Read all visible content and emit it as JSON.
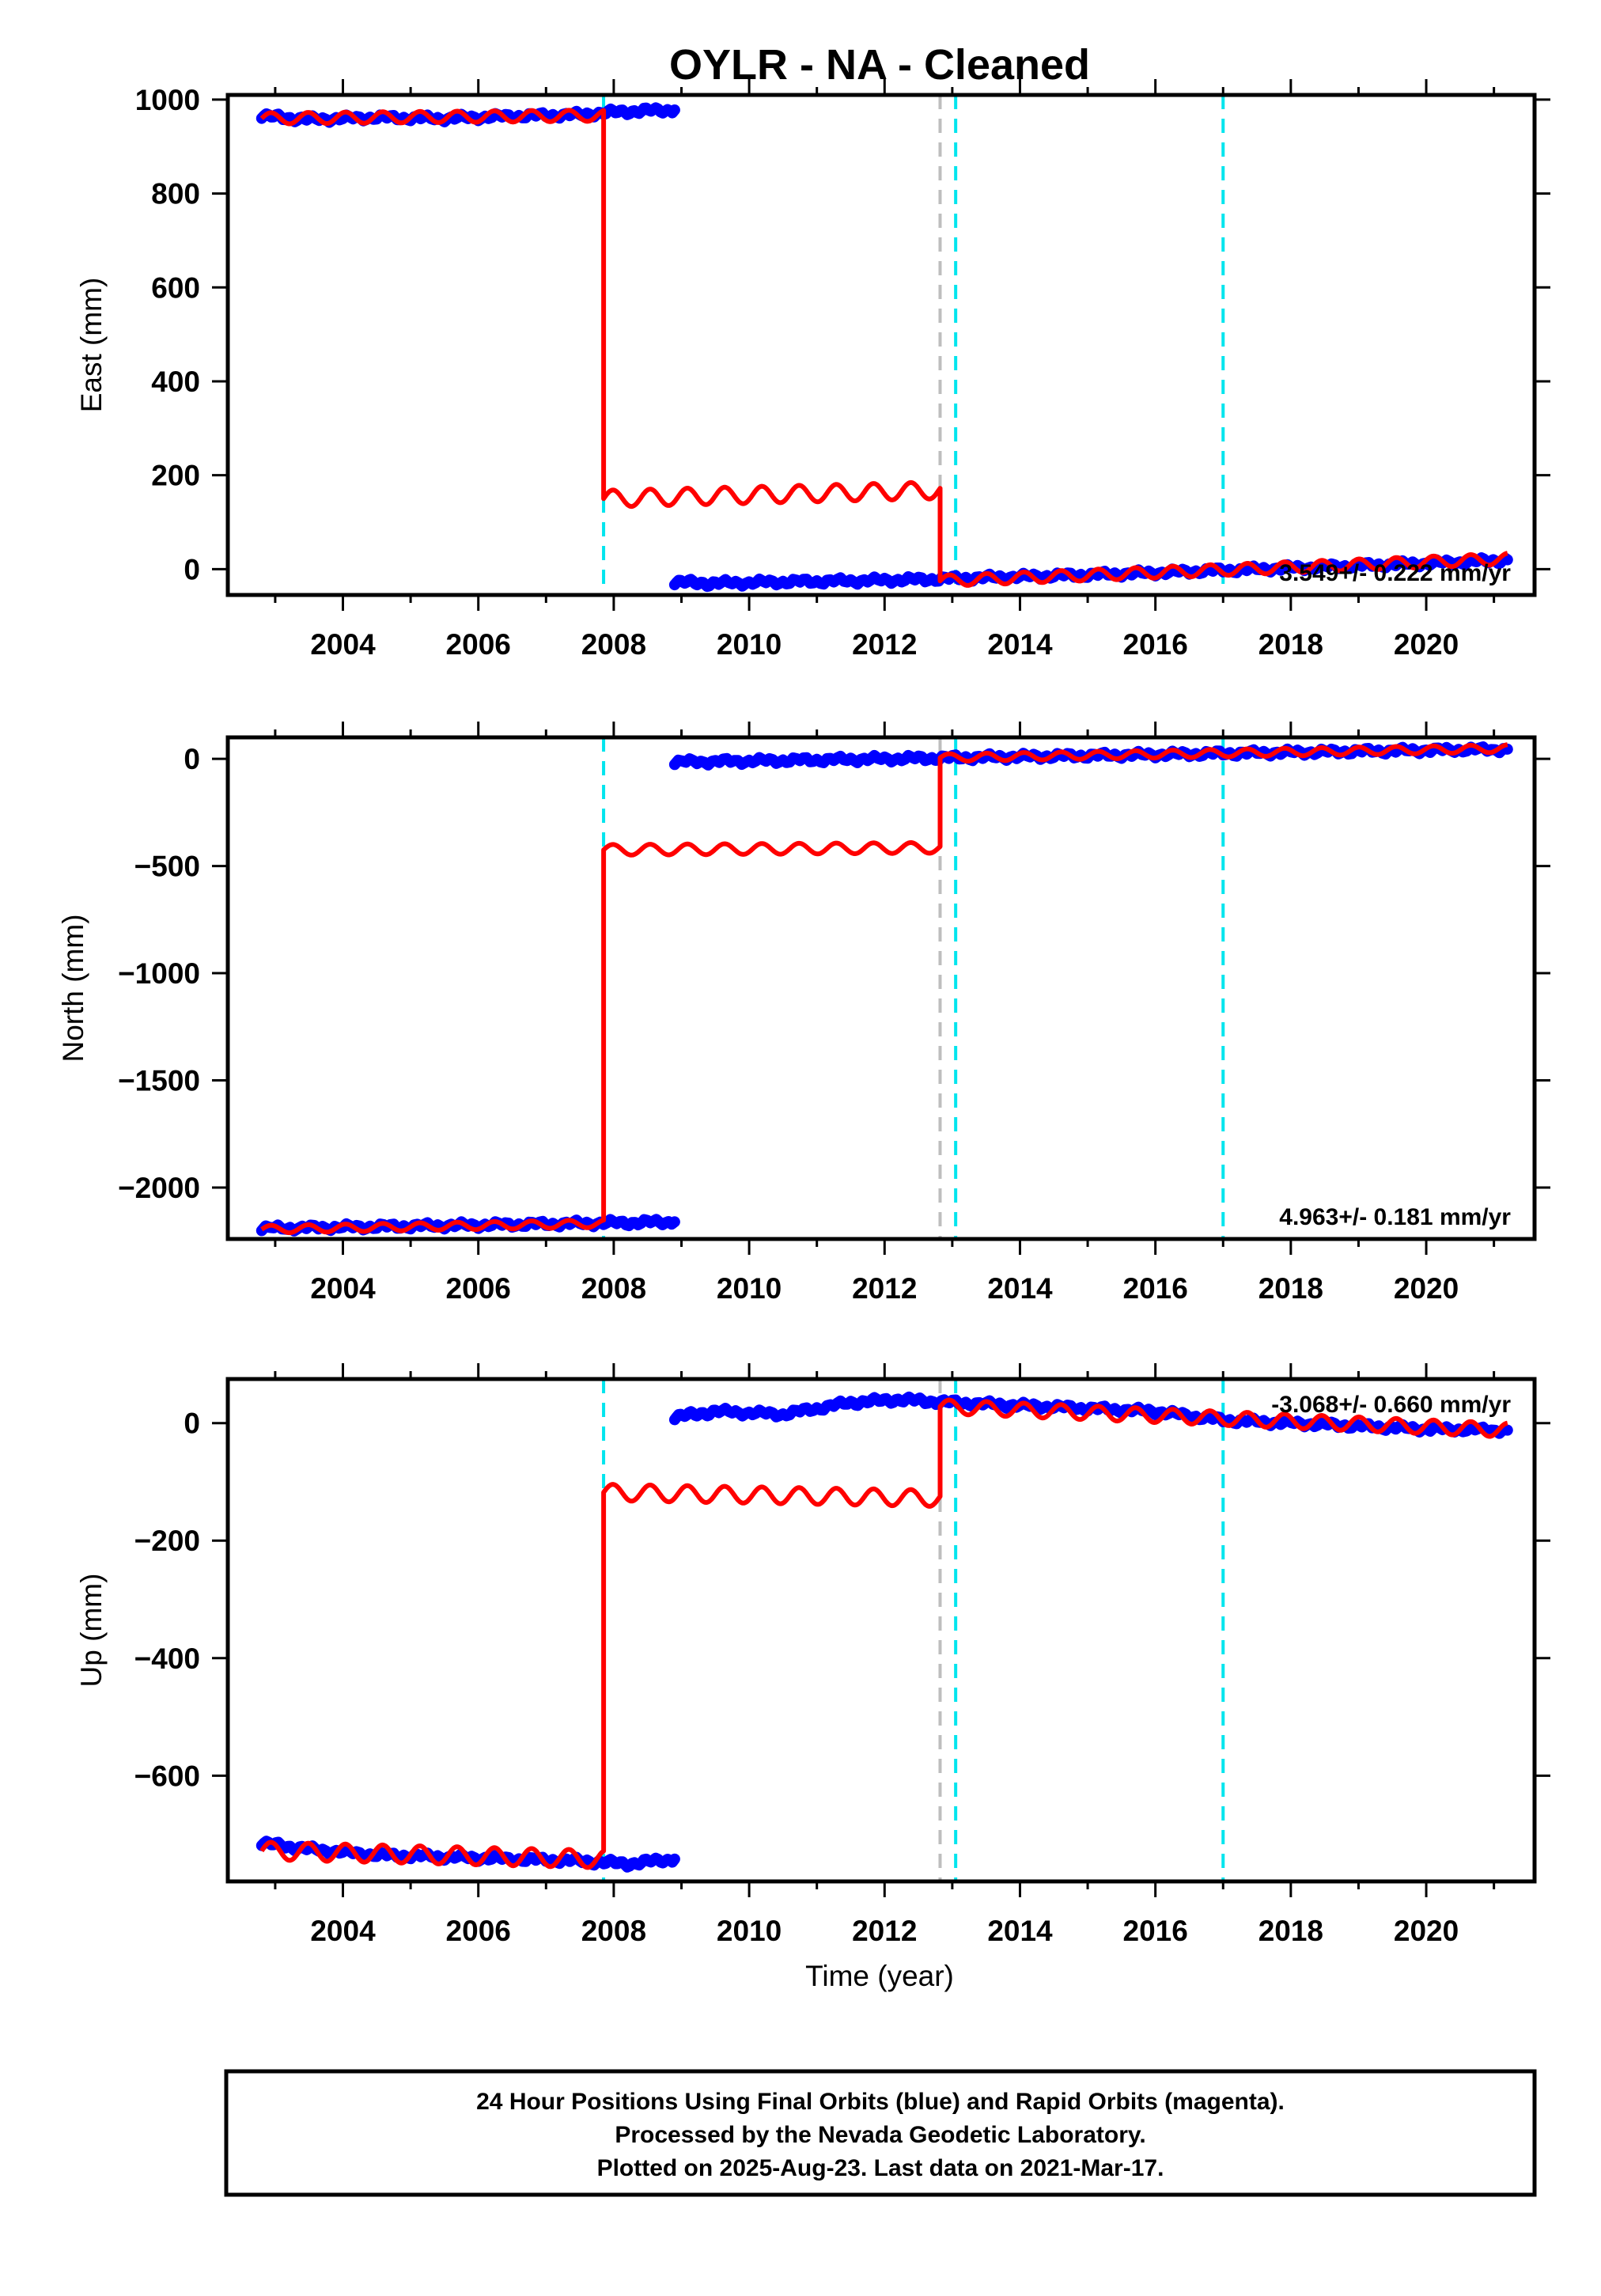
{
  "title": "OYLR  - NA - Cleaned",
  "colors": {
    "final_orbits": "#0000ff",
    "model": "#ff0000",
    "step_dashed": "#00e5ee",
    "equipment_dashed": "#bebebe"
  },
  "xlabel": "Time (year)",
  "footer": {
    "line1": "24 Hour Positions Using Final Orbits (blue) and Rapid Orbits (magenta).",
    "line2": "Processed by the Nevada Geodetic Laboratory.",
    "line3": "Plotted on 2025-Aug-23. Last data on 2021-Mar-17."
  },
  "chart_data": [
    {
      "type": "scatter",
      "ylabel": "East (mm)",
      "rate_label": "3.549+/- 0.222 mm/yr",
      "xlim": [
        2002.3,
        2021.6
      ],
      "ylim": [
        -55,
        1010
      ],
      "xticks": [
        2004,
        2006,
        2008,
        2010,
        2012,
        2014,
        2016,
        2018,
        2020
      ],
      "yticks": [
        0,
        200,
        400,
        600,
        800,
        1000
      ],
      "vlines": [
        {
          "x": 2007.85,
          "style": "cyan"
        },
        {
          "x": 2012.82,
          "style": "gray"
        },
        {
          "x": 2013.05,
          "style": "cyan"
        },
        {
          "x": 2017.0,
          "style": "cyan"
        }
      ],
      "series": [
        {
          "role": "final_orbits",
          "segments": [
            {
              "x": [
                2002.8,
                2003.5,
                2004.5,
                2005.5,
                2006.5,
                2007.5,
                2008.2,
                2008.9
              ],
              "y": [
                965,
                958,
                962,
                960,
                965,
                968,
                975,
                978
              ]
            },
            {
              "x": [
                2008.9,
                2009.5,
                2010.5,
                2011.5,
                2012.5,
                2013.5,
                2014.5,
                2015.5,
                2016.5,
                2017.5,
                2018.5,
                2019.5,
                2020.5,
                2021.2
              ],
              "y": [
                -28,
                -30,
                -27,
                -25,
                -22,
                -18,
                -14,
                -10,
                -5,
                0,
                5,
                10,
                15,
                20
              ]
            }
          ]
        },
        {
          "role": "model",
          "segments": [
            {
              "x": [
                2002.8,
                2007.85
              ],
              "y": [
                960,
                966
              ],
              "amp": 12,
              "period": 0.55
            },
            {
              "x": [
                2007.85,
                2012.82
              ],
              "y": [
                150,
                168
              ],
              "amp": 18,
              "period": 0.55
            },
            {
              "x": [
                2012.82,
                2021.2
              ],
              "y": [
                -25,
                22
              ],
              "amp": 12,
              "period": 0.55
            }
          ]
        }
      ]
    },
    {
      "type": "scatter",
      "ylabel": "North (mm)",
      "rate_label": "4.963+/- 0.181 mm/yr",
      "xlim": [
        2002.3,
        2021.6
      ],
      "ylim": [
        -2240,
        100
      ],
      "xticks": [
        2004,
        2006,
        2008,
        2010,
        2012,
        2014,
        2016,
        2018,
        2020
      ],
      "yticks": [
        0,
        -500,
        -1000,
        -1500,
        -2000
      ],
      "vlines": [
        {
          "x": 2007.85,
          "style": "cyan"
        },
        {
          "x": 2012.82,
          "style": "gray"
        },
        {
          "x": 2013.05,
          "style": "cyan"
        },
        {
          "x": 2017.0,
          "style": "cyan"
        }
      ],
      "series": [
        {
          "role": "final_orbits",
          "segments": [
            {
              "x": [
                2002.8,
                2004,
                2005,
                2006,
                2007,
                2008,
                2008.9
              ],
              "y": [
                -2190,
                -2185,
                -2180,
                -2175,
                -2170,
                -2165,
                -2160
              ]
            },
            {
              "x": [
                2008.9,
                2010,
                2011,
                2012,
                2013,
                2014,
                2015,
                2016,
                2017,
                2018,
                2019,
                2020,
                2021.2
              ],
              "y": [
                -15,
                -10,
                -5,
                0,
                5,
                10,
                15,
                20,
                25,
                30,
                35,
                40,
                45
              ]
            }
          ]
        },
        {
          "role": "model",
          "segments": [
            {
              "x": [
                2002.8,
                2007.85
              ],
              "y": [
                -2195,
                -2168
              ],
              "amp": 18,
              "period": 0.55
            },
            {
              "x": [
                2007.85,
                2012.82
              ],
              "y": [
                -425,
                -415
              ],
              "amp": 25,
              "period": 0.55
            },
            {
              "x": [
                2012.82,
                2021.2
              ],
              "y": [
                5,
                48
              ],
              "amp": 18,
              "period": 0.55
            }
          ]
        }
      ]
    },
    {
      "type": "scatter",
      "ylabel": "Up (mm)",
      "rate_label": "-3.068+/- 0.660 mm/yr",
      "xlim": [
        2002.3,
        2021.6
      ],
      "ylim": [
        -780,
        75
      ],
      "xticks": [
        2004,
        2006,
        2008,
        2010,
        2012,
        2014,
        2016,
        2018,
        2020
      ],
      "yticks": [
        0,
        -200,
        -400,
        -600
      ],
      "vlines": [
        {
          "x": 2007.85,
          "style": "cyan"
        },
        {
          "x": 2012.82,
          "style": "gray"
        },
        {
          "x": 2013.05,
          "style": "cyan"
        },
        {
          "x": 2017.0,
          "style": "cyan"
        }
      ],
      "series": [
        {
          "role": "final_orbits",
          "segments": [
            {
              "x": [
                2002.8,
                2003.5,
                2004.5,
                2005.5,
                2006.5,
                2007.5,
                2008.2,
                2008.9
              ],
              "y": [
                -715,
                -725,
                -735,
                -738,
                -742,
                -745,
                -750,
                -742
              ]
            },
            {
              "x": [
                2008.9,
                2009.5,
                2010.5,
                2011.5,
                2012.2,
                2013,
                2014,
                2015,
                2016,
                2017,
                2018,
                2019,
                2020,
                2021.2
              ],
              "y": [
                10,
                20,
                15,
                35,
                40,
                35,
                30,
                25,
                20,
                5,
                0,
                -5,
                -10,
                -12
              ]
            }
          ]
        },
        {
          "role": "model",
          "segments": [
            {
              "x": [
                2002.8,
                2007.85
              ],
              "y": [
                -728,
                -742
              ],
              "amp": 15,
              "period": 0.55
            },
            {
              "x": [
                2007.85,
                2012.82
              ],
              "y": [
                -118,
                -128
              ],
              "amp": 14,
              "period": 0.55
            },
            {
              "x": [
                2012.82,
                2021.2
              ],
              "y": [
                28,
                -12
              ],
              "amp": 12,
              "period": 0.55
            }
          ]
        }
      ]
    }
  ]
}
